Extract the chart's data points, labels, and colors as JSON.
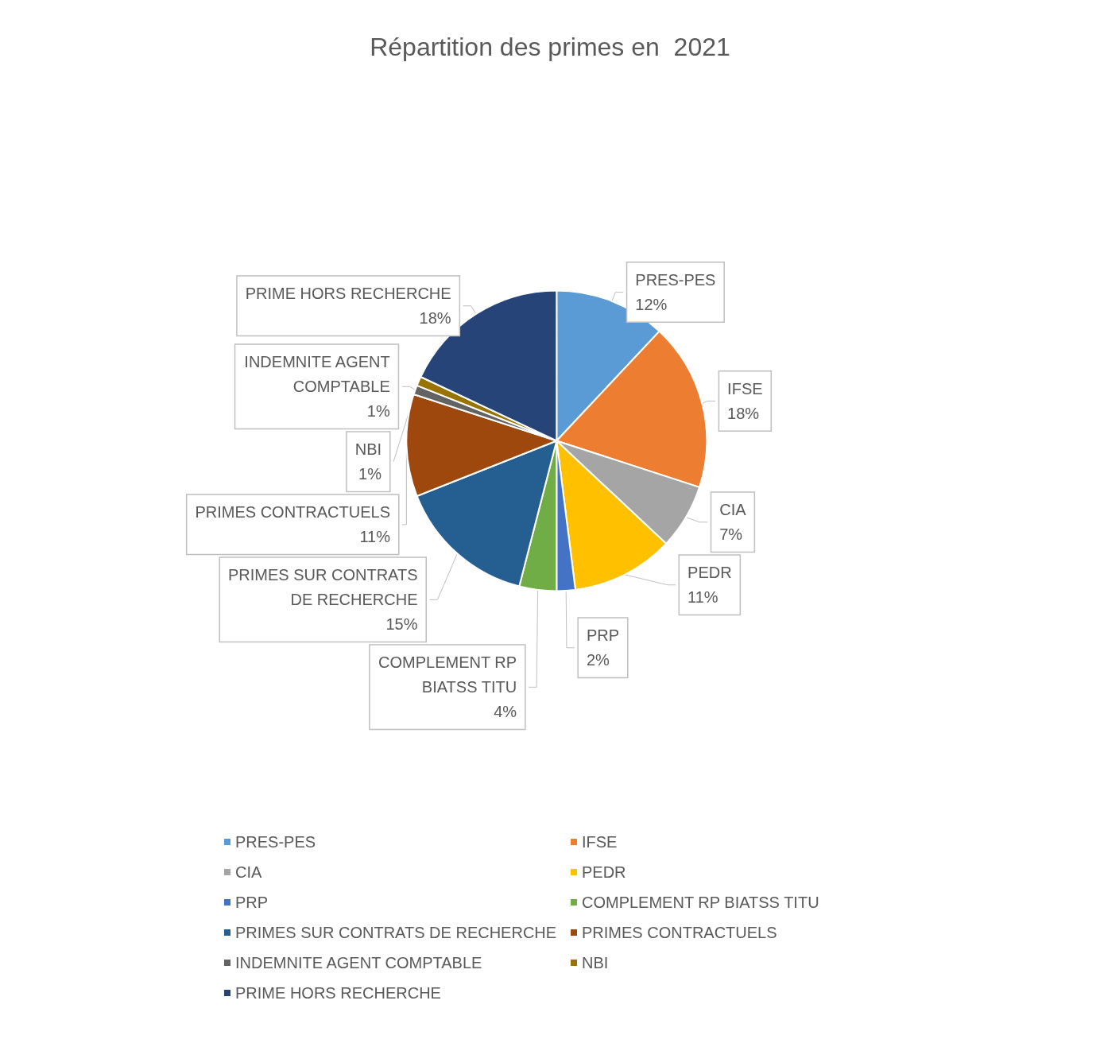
{
  "chart_data": {
    "type": "pie",
    "title": "Répartition des primes en  2021",
    "categories": [
      "PRES-PES",
      "IFSE",
      "CIA",
      "PEDR",
      "PRP",
      "COMPLEMENT RP BIATSS TITU",
      "PRIMES SUR CONTRATS DE RECHERCHE",
      "PRIMES CONTRACTUELS",
      "INDEMNITE AGENT COMPTABLE",
      "NBI",
      "PRIME HORS RECHERCHE"
    ],
    "values": [
      12,
      18,
      7,
      11,
      2,
      4,
      15,
      11,
      1,
      1,
      18
    ],
    "value_labels": [
      "12%",
      "18%",
      "7%",
      "11%",
      "2%",
      "4%",
      "15%",
      "11%",
      "1%",
      "1%",
      "18%"
    ],
    "colors": [
      "#5b9bd5",
      "#ed7d31",
      "#a5a5a5",
      "#ffc000",
      "#4472c4",
      "#70ad47",
      "#255e91",
      "#9e480e",
      "#636363",
      "#997300",
      "#264478"
    ],
    "legend": "bottom"
  }
}
